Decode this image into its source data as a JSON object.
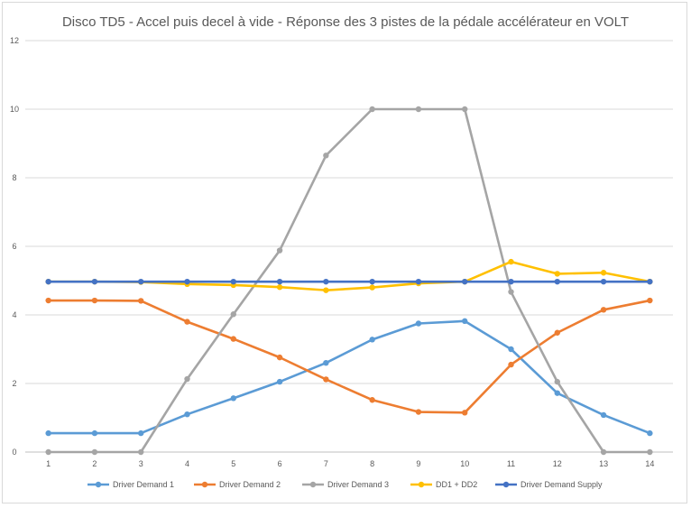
{
  "chart_data": {
    "type": "line",
    "title": "Disco TD5 - Accel puis decel à vide - Réponse des 3 pistes de la pédale accélérateur en VOLT",
    "xlabel": "",
    "ylabel": "",
    "ylim": [
      0,
      12
    ],
    "yticks": [
      "0",
      "2",
      "4",
      "6",
      "8",
      "10",
      "12"
    ],
    "categories": [
      "1",
      "2",
      "3",
      "4",
      "5",
      "6",
      "7",
      "8",
      "9",
      "10",
      "11",
      "12",
      "13",
      "14"
    ],
    "grid": true,
    "legend_position": "bottom",
    "series": [
      {
        "name": "Driver Demand 1",
        "color": "#5b9bd5",
        "values": [
          0.55,
          0.55,
          0.55,
          1.1,
          1.57,
          2.05,
          2.6,
          3.28,
          3.75,
          3.82,
          3.0,
          1.72,
          1.08,
          0.55
        ]
      },
      {
        "name": "Driver Demand 2",
        "color": "#ed7d31",
        "values": [
          4.42,
          4.42,
          4.41,
          3.8,
          3.3,
          2.76,
          2.12,
          1.52,
          1.17,
          1.15,
          2.55,
          3.48,
          4.15,
          4.42
        ]
      },
      {
        "name": "Driver Demand 3",
        "color": "#a5a5a5",
        "values": [
          0.0,
          0.0,
          0.0,
          2.13,
          4.02,
          5.88,
          8.65,
          10.0,
          10.0,
          10.0,
          4.67,
          2.05,
          0.0,
          0.0
        ]
      },
      {
        "name": "DD1 + DD2",
        "color": "#ffc000",
        "values": [
          4.97,
          4.97,
          4.96,
          4.9,
          4.87,
          4.81,
          4.72,
          4.8,
          4.92,
          4.97,
          5.55,
          5.2,
          5.23,
          4.97
        ]
      },
      {
        "name": "Driver Demand Supply",
        "color": "#4472c4",
        "values": [
          4.97,
          4.97,
          4.97,
          4.97,
          4.97,
          4.97,
          4.97,
          4.97,
          4.97,
          4.97,
          4.97,
          4.97,
          4.97,
          4.97
        ]
      }
    ]
  }
}
